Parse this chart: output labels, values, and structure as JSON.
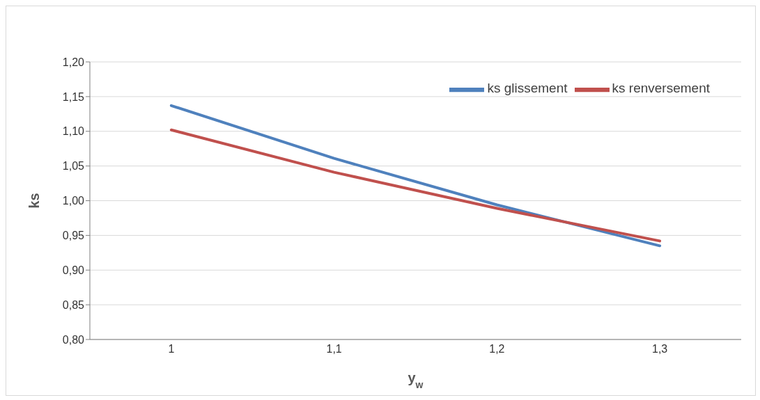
{
  "chart_data": {
    "type": "line",
    "xlabel": "y$_{w}$",
    "ylabel": "ks",
    "categories": [
      "1",
      "1,1",
      "1,2",
      "1,3"
    ],
    "series": [
      {
        "name": "ks glissement",
        "color": "#4f81bd",
        "values": [
          1.137,
          1.061,
          0.994,
          0.935
        ]
      },
      {
        "name": "ks renversement",
        "color": "#c0504d",
        "values": [
          1.102,
          1.041,
          0.989,
          0.942
        ]
      }
    ],
    "ylim": [
      0.8,
      1.2
    ],
    "yticks": [
      {
        "value": 0.8,
        "label": "0,80"
      },
      {
        "value": 0.85,
        "label": "0,85"
      },
      {
        "value": 0.9,
        "label": "0,90"
      },
      {
        "value": 0.95,
        "label": "0,95"
      },
      {
        "value": 1.0,
        "label": "1,00"
      },
      {
        "value": 1.05,
        "label": "1,05"
      },
      {
        "value": 1.1,
        "label": "1,10"
      },
      {
        "value": 1.15,
        "label": "1,15"
      },
      {
        "value": 1.2,
        "label": "1,20"
      }
    ],
    "grid": "y",
    "legend": "top right",
    "marker": "none",
    "line_style": "solid"
  }
}
